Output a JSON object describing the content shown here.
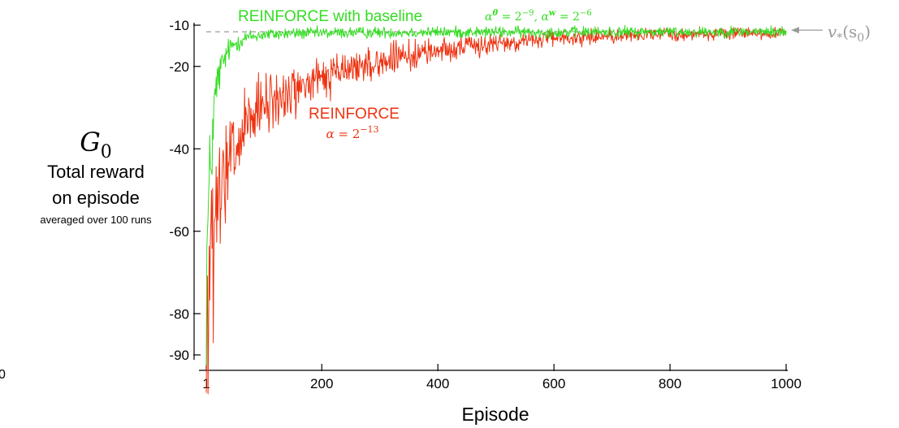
{
  "chart_data": {
    "type": "line",
    "xlabel": "Episode",
    "ylabel_lines": [
      "Total reward",
      "on episode"
    ],
    "ylabel_symbol": "G",
    "ylabel_symbol_sub": "0",
    "ylabel_note": "averaged over 100 runs",
    "xlim": [
      1,
      1000
    ],
    "ylim": [
      -92,
      -8
    ],
    "x_ticks": [
      1,
      200,
      400,
      600,
      800,
      1000
    ],
    "x_tick_labels": [
      "1",
      "200",
      "400",
      "600",
      "800",
      "1000"
    ],
    "y_ticks": [
      -10,
      -20,
      -40,
      -60,
      -80,
      -90
    ],
    "y_tick_labels": [
      "-10",
      "-20",
      "-40",
      "-60",
      "-80",
      "-90"
    ],
    "stray_label": "0",
    "reference_line": {
      "value": -11.6,
      "label_symbol": "v",
      "label_sub": "*",
      "label_arg": "(s",
      "label_arg_sub": "0",
      "label_close": ")",
      "color": "#9a9a9a"
    },
    "series": [
      {
        "name": "REINFORCE with baseline",
        "param_text": "α",
        "param_sup": "θ",
        "param_value": " = 2",
        "param_value_sup": "−9",
        "param2_text": ", α",
        "param2_sup": "w",
        "param2_value": " = 2",
        "param2_value_sup": "−6",
        "color": "#33dd22",
        "points": [
          [
            1,
            -72
          ],
          [
            4,
            -58
          ],
          [
            8,
            -46
          ],
          [
            12,
            -36
          ],
          [
            16,
            -28
          ],
          [
            20,
            -24
          ],
          [
            25,
            -21
          ],
          [
            30,
            -19
          ],
          [
            40,
            -16
          ],
          [
            50,
            -14.5
          ],
          [
            70,
            -13
          ],
          [
            100,
            -12.3
          ],
          [
            150,
            -12
          ],
          [
            250,
            -11.8
          ],
          [
            400,
            -11.7
          ],
          [
            600,
            -11.7
          ],
          [
            800,
            -11.6
          ],
          [
            1000,
            -11.6
          ]
        ]
      },
      {
        "name": "REINFORCE",
        "param_text": "α",
        "param_value": " = 2",
        "param_value_sup": "−13",
        "color": "#ee3311",
        "points": [
          [
            1,
            -90
          ],
          [
            5,
            -76
          ],
          [
            10,
            -68
          ],
          [
            15,
            -62
          ],
          [
            20,
            -56
          ],
          [
            30,
            -50
          ],
          [
            40,
            -44
          ],
          [
            60,
            -38
          ],
          [
            80,
            -33
          ],
          [
            100,
            -30
          ],
          [
            150,
            -26
          ],
          [
            200,
            -23
          ],
          [
            250,
            -20.5
          ],
          [
            300,
            -19
          ],
          [
            350,
            -17.5
          ],
          [
            400,
            -16
          ],
          [
            500,
            -14.5
          ],
          [
            600,
            -13.2
          ],
          [
            700,
            -12.6
          ],
          [
            800,
            -12.2
          ],
          [
            900,
            -12
          ],
          [
            1000,
            -11.9
          ]
        ]
      }
    ],
    "grid": false,
    "legend": "inline labels"
  }
}
